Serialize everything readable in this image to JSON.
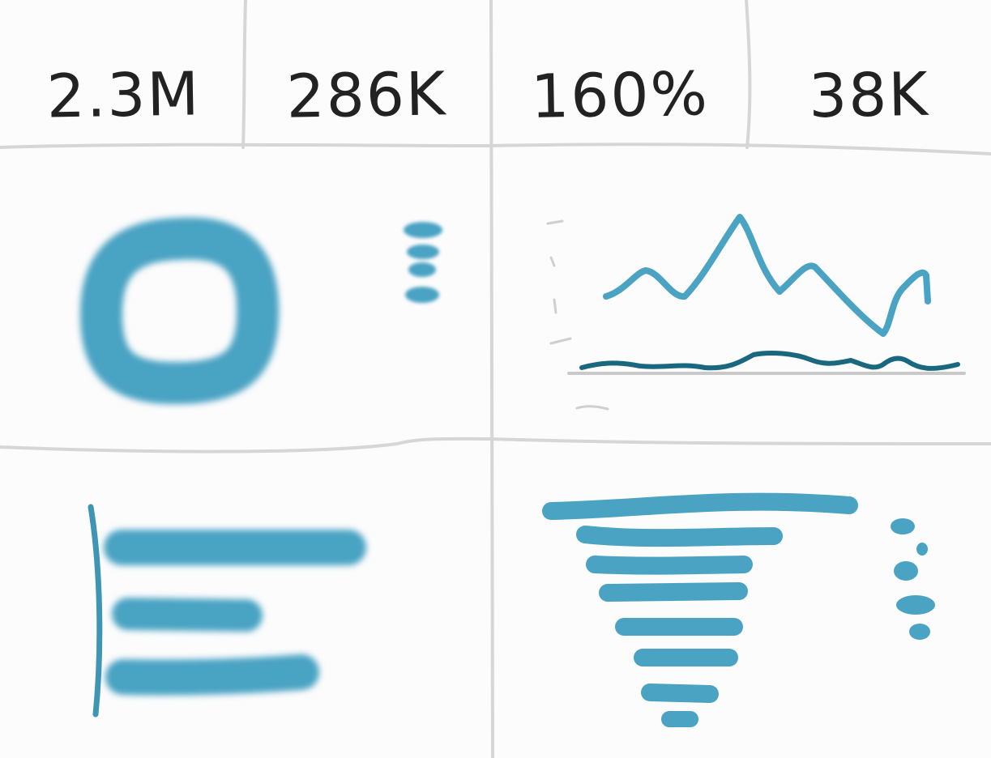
{
  "kpis": [
    {
      "label": "2.3M"
    },
    {
      "label": "286K"
    },
    {
      "label": "160%"
    },
    {
      "label": "38K"
    }
  ],
  "colors": {
    "accent": "#4aa3c3",
    "accent_dark": "#1a6880",
    "grid": "#d6d6d6",
    "text": "#222222"
  }
}
